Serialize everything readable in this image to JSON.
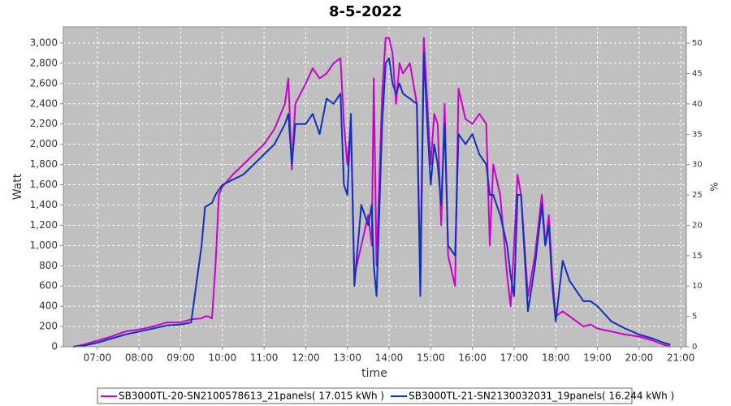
{
  "chart_data": {
    "type": "line",
    "title": "8-5-2022",
    "x_label": "time",
    "y_label": "Watt",
    "y2_label": "%",
    "x": [
      "06:25",
      "06:40",
      "07:00",
      "07:20",
      "07:40",
      "08:00",
      "08:20",
      "08:40",
      "09:00",
      "09:15",
      "09:30",
      "09:35",
      "09:40",
      "09:45",
      "09:50",
      "09:55",
      "10:00",
      "10:15",
      "10:30",
      "10:45",
      "11:00",
      "11:15",
      "11:30",
      "11:35",
      "11:40",
      "11:45",
      "12:00",
      "12:10",
      "12:20",
      "12:30",
      "12:40",
      "12:50",
      "12:55",
      "13:00",
      "13:05",
      "13:10",
      "13:20",
      "13:30",
      "13:35",
      "13:38",
      "13:42",
      "13:50",
      "13:55",
      "14:00",
      "14:05",
      "14:10",
      "14:15",
      "14:20",
      "14:30",
      "14:40",
      "14:45",
      "14:50",
      "14:55",
      "15:00",
      "15:05",
      "15:10",
      "15:15",
      "15:20",
      "15:25",
      "15:35",
      "15:40",
      "15:50",
      "16:00",
      "16:10",
      "16:20",
      "16:25",
      "16:30",
      "16:40",
      "16:50",
      "16:55",
      "17:00",
      "17:05",
      "17:10",
      "17:20",
      "17:30",
      "17:40",
      "17:45",
      "17:50",
      "17:55",
      "18:00",
      "18:10",
      "18:20",
      "18:30",
      "18:40",
      "18:50",
      "19:00",
      "19:20",
      "19:40",
      "20:00",
      "20:20",
      "20:35",
      "20:45"
    ],
    "series": [
      {
        "name": "SB3000TL-20-SN2100578613_21panels( 17.015 kWh )",
        "color": "#cc00cc",
        "values": [
          0,
          20,
          60,
          100,
          150,
          170,
          200,
          240,
          240,
          270,
          280,
          300,
          300,
          280,
          800,
          1500,
          1580,
          1700,
          1800,
          1900,
          2000,
          2150,
          2400,
          2650,
          1750,
          2400,
          2600,
          2750,
          2650,
          2700,
          2800,
          2850,
          2200,
          1800,
          2200,
          700,
          1000,
          1300,
          1000,
          2650,
          800,
          2500,
          3050,
          3050,
          2900,
          2400,
          2800,
          2700,
          2800,
          2400,
          700,
          3050,
          2400,
          1800,
          2300,
          2200,
          1200,
          2400,
          900,
          600,
          2550,
          2250,
          2200,
          2300,
          2200,
          1000,
          1800,
          1500,
          700,
          400,
          1000,
          1700,
          1500,
          500,
          900,
          1500,
          1000,
          1300,
          700,
          300,
          350,
          300,
          250,
          200,
          220,
          180,
          150,
          120,
          100,
          60,
          20,
          0
        ]
      },
      {
        "name": "SB3000TL-21-SN2130032031_19panels( 16.244 kWh )",
        "color": "#1030c0",
        "values": [
          0,
          10,
          40,
          80,
          120,
          150,
          180,
          210,
          220,
          240,
          1000,
          1380,
          1400,
          1420,
          1500,
          1550,
          1600,
          1650,
          1700,
          1800,
          1900,
          2000,
          2200,
          2300,
          1800,
          2200,
          2200,
          2300,
          2100,
          2450,
          2400,
          2500,
          1600,
          1500,
          2300,
          600,
          1400,
          1200,
          1400,
          800,
          500,
          2200,
          2800,
          2850,
          2600,
          2500,
          2600,
          2500,
          2450,
          2400,
          500,
          2900,
          2200,
          1600,
          2000,
          1800,
          1400,
          2200,
          1000,
          900,
          2100,
          2000,
          2100,
          1900,
          1800,
          1500,
          1500,
          1300,
          1000,
          700,
          500,
          1500,
          1500,
          350,
          800,
          1400,
          1000,
          1200,
          600,
          250,
          850,
          650,
          550,
          450,
          450,
          400,
          250,
          180,
          120,
          80,
          40,
          20
        ]
      }
    ],
    "xlim": [
      "06:11",
      "21:08"
    ],
    "xticks": [
      "07:00",
      "08:00",
      "09:00",
      "10:00",
      "11:00",
      "12:00",
      "13:00",
      "14:00",
      "15:00",
      "16:00",
      "17:00",
      "18:00",
      "19:00",
      "20:00",
      "21:00"
    ],
    "ylim": [
      0,
      3160
    ],
    "yticks": [
      0,
      200,
      400,
      600,
      800,
      {
        "value": 1000,
        "label": "1,000"
      },
      {
        "value": 1200,
        "label": "1,200"
      },
      {
        "value": 1400,
        "label": "1,400"
      },
      {
        "value": 1600,
        "label": "1,600"
      },
      {
        "value": 1800,
        "label": "1,800"
      },
      {
        "value": 2000,
        "label": "2,000"
      },
      {
        "value": 2200,
        "label": "2,200"
      },
      {
        "value": 2400,
        "label": "2,400"
      },
      {
        "value": 2600,
        "label": "2,600"
      },
      {
        "value": 2800,
        "label": "2,800"
      },
      {
        "value": 3000,
        "label": "3,000"
      }
    ],
    "y2lim": [
      0,
      52.7
    ],
    "y2ticks": [
      0,
      5,
      10,
      15,
      20,
      25,
      30,
      35,
      40,
      45,
      50
    ],
    "grid": true,
    "legend": "bottom"
  }
}
